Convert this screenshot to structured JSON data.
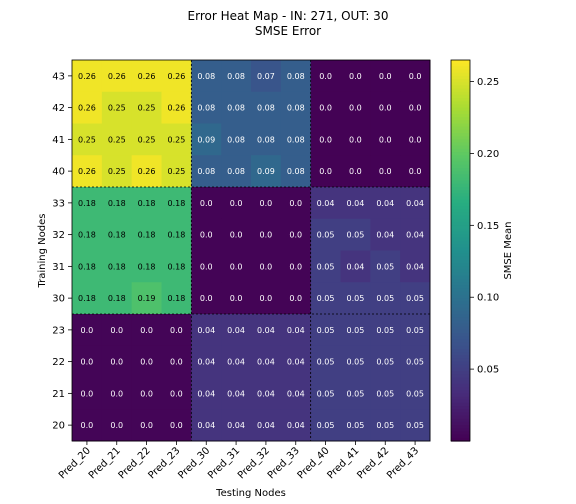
{
  "chart_data": {
    "type": "heatmap",
    "title": "Error Heat Map - IN: 271, OUT: 30",
    "subtitle": "SMSE Error",
    "xlabel": "Testing Nodes",
    "ylabel": "Training Nodes",
    "x_categories": [
      "Pred_20",
      "Pred_21",
      "Pred_22",
      "Pred_23",
      "Pred_30",
      "Pred_31",
      "Pred_32",
      "Pred_33",
      "Pred_40",
      "Pred_41",
      "Pred_42",
      "Pred_43"
    ],
    "y_categories": [
      "43",
      "42",
      "41",
      "40",
      "33",
      "32",
      "31",
      "30",
      "23",
      "22",
      "21",
      "20"
    ],
    "values": [
      [
        0.26,
        0.26,
        0.26,
        0.26,
        0.08,
        0.08,
        0.07,
        0.08,
        0.001,
        0.001,
        0.001,
        0.001
      ],
      [
        0.26,
        0.25,
        0.25,
        0.26,
        0.08,
        0.08,
        0.08,
        0.08,
        0.001,
        0.001,
        0.001,
        0.001
      ],
      [
        0.25,
        0.25,
        0.25,
        0.25,
        0.09,
        0.08,
        0.08,
        0.08,
        0.001,
        0.001,
        0.001,
        0.001
      ],
      [
        0.26,
        0.25,
        0.26,
        0.25,
        0.08,
        0.08,
        0.09,
        0.08,
        0.001,
        0.001,
        0.001,
        0.001
      ],
      [
        0.18,
        0.18,
        0.18,
        0.18,
        0.002,
        0.002,
        0.002,
        0.002,
        0.04,
        0.04,
        0.04,
        0.04
      ],
      [
        0.18,
        0.18,
        0.18,
        0.18,
        0.002,
        0.002,
        0.002,
        0.002,
        0.05,
        0.05,
        0.04,
        0.04
      ],
      [
        0.18,
        0.18,
        0.18,
        0.18,
        0.002,
        0.002,
        0.002,
        0.002,
        0.05,
        0.04,
        0.05,
        0.04
      ],
      [
        0.18,
        0.18,
        0.19,
        0.18,
        0.002,
        0.002,
        0.002,
        0.002,
        0.05,
        0.05,
        0.05,
        0.05
      ],
      [
        0.003,
        0.003,
        0.003,
        0.003,
        0.04,
        0.04,
        0.04,
        0.04,
        0.05,
        0.05,
        0.05,
        0.05
      ],
      [
        0.003,
        0.003,
        0.003,
        0.003,
        0.04,
        0.04,
        0.04,
        0.04,
        0.05,
        0.05,
        0.05,
        0.05
      ],
      [
        0.003,
        0.003,
        0.003,
        0.003,
        0.04,
        0.04,
        0.04,
        0.04,
        0.05,
        0.05,
        0.05,
        0.05
      ],
      [
        0.003,
        0.003,
        0.003,
        0.003,
        0.04,
        0.04,
        0.04,
        0.04,
        0.05,
        0.05,
        0.05,
        0.05
      ]
    ],
    "cell_labels": [
      [
        "0.26",
        "0.26",
        "0.26",
        "0.26",
        "0.08",
        "0.08",
        "0.07",
        "0.08",
        "0.0",
        "0.0",
        "0.0",
        "0.0"
      ],
      [
        "0.26",
        "0.25",
        "0.25",
        "0.26",
        "0.08",
        "0.08",
        "0.08",
        "0.08",
        "0.0",
        "0.0",
        "0.0",
        "0.0"
      ],
      [
        "0.25",
        "0.25",
        "0.25",
        "0.25",
        "0.09",
        "0.08",
        "0.08",
        "0.08",
        "0.0",
        "0.0",
        "0.0",
        "0.0"
      ],
      [
        "0.26",
        "0.25",
        "0.26",
        "0.25",
        "0.08",
        "0.08",
        "0.09",
        "0.08",
        "0.0",
        "0.0",
        "0.0",
        "0.0"
      ],
      [
        "0.18",
        "0.18",
        "0.18",
        "0.18",
        "0.0",
        "0.0",
        "0.0",
        "0.0",
        "0.04",
        "0.04",
        "0.04",
        "0.04"
      ],
      [
        "0.18",
        "0.18",
        "0.18",
        "0.18",
        "0.0",
        "0.0",
        "0.0",
        "0.0",
        "0.05",
        "0.05",
        "0.04",
        "0.04"
      ],
      [
        "0.18",
        "0.18",
        "0.18",
        "0.18",
        "0.0",
        "0.0",
        "0.0",
        "0.0",
        "0.05",
        "0.04",
        "0.05",
        "0.04"
      ],
      [
        "0.18",
        "0.18",
        "0.19",
        "0.18",
        "0.0",
        "0.0",
        "0.0",
        "0.0",
        "0.05",
        "0.05",
        "0.05",
        "0.05"
      ],
      [
        "0.0",
        "0.0",
        "0.0",
        "0.0",
        "0.04",
        "0.04",
        "0.04",
        "0.04",
        "0.05",
        "0.05",
        "0.05",
        "0.05"
      ],
      [
        "0.0",
        "0.0",
        "0.0",
        "0.0",
        "0.04",
        "0.04",
        "0.04",
        "0.04",
        "0.05",
        "0.05",
        "0.05",
        "0.05"
      ],
      [
        "0.0",
        "0.0",
        "0.0",
        "0.0",
        "0.04",
        "0.04",
        "0.04",
        "0.04",
        "0.05",
        "0.05",
        "0.05",
        "0.05"
      ],
      [
        "0.0",
        "0.0",
        "0.0",
        "0.0",
        "0.04",
        "0.04",
        "0.04",
        "0.04",
        "0.05",
        "0.05",
        "0.05",
        "0.05"
      ]
    ],
    "group_size": 4,
    "colormap": "viridis",
    "colorbar": {
      "label": "SMSE Mean",
      "range": [
        0.0,
        0.265
      ],
      "ticks": [
        0.05,
        0.1,
        0.15,
        0.2,
        0.25
      ],
      "tick_labels": [
        "0.05",
        "0.10",
        "0.15",
        "0.20",
        "0.25"
      ]
    }
  }
}
